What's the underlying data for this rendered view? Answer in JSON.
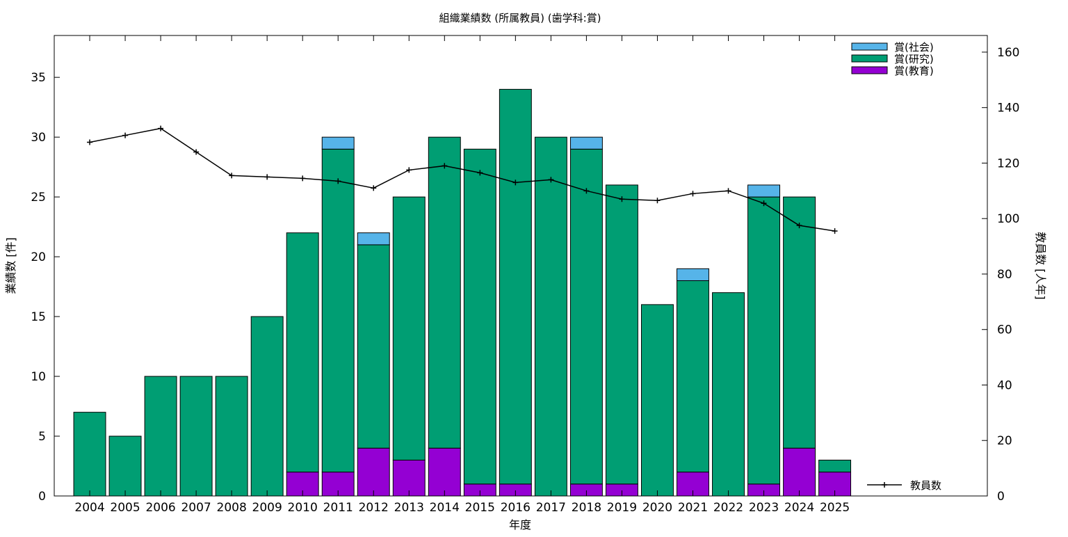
{
  "chart_data": {
    "type": "bar",
    "title": "組織業績数 (所属教員) (歯学科:賞)",
    "xlabel": "年度",
    "ylabel": "業績数 [件]",
    "y2label": "教員数 [人年]",
    "ylim": [
      0,
      38.5
    ],
    "y2lim": [
      0,
      166
    ],
    "yticks": [
      0,
      5,
      10,
      15,
      20,
      25,
      30,
      35
    ],
    "y2ticks": [
      0,
      20,
      40,
      60,
      80,
      100,
      120,
      140,
      160
    ],
    "categories": [
      "2004",
      "2005",
      "2006",
      "2007",
      "2008",
      "2009",
      "2010",
      "2011",
      "2012",
      "2013",
      "2014",
      "2015",
      "2016",
      "2017",
      "2018",
      "2019",
      "2020",
      "2021",
      "2022",
      "2023",
      "2024",
      "2025"
    ],
    "stacked": true,
    "legend_position": "top-right",
    "grid": false,
    "series": [
      {
        "name": "賞(教育)",
        "color": "#9400d3",
        "values": [
          0,
          0,
          0,
          0,
          0,
          0,
          2,
          2,
          4,
          3,
          4,
          1,
          1,
          0,
          1,
          1,
          0,
          2,
          0,
          1,
          4,
          2
        ]
      },
      {
        "name": "賞(研究)",
        "color": "#009e73",
        "values": [
          7,
          5,
          10,
          10,
          10,
          15,
          20,
          27,
          17,
          22,
          26,
          28,
          33,
          30,
          28,
          25,
          16,
          16,
          17,
          24,
          21,
          1
        ]
      },
      {
        "name": "賞(社会)",
        "color": "#56b4e9",
        "values": [
          0,
          0,
          0,
          0,
          0,
          0,
          0,
          1,
          1,
          0,
          0,
          0,
          0,
          0,
          1,
          0,
          0,
          1,
          0,
          1,
          0,
          0
        ]
      }
    ],
    "line_series": {
      "name": "教員数",
      "color": "#000000",
      "axis": "right",
      "values": [
        127.5,
        130,
        132.5,
        124,
        115.5,
        115,
        114.5,
        113.5,
        111,
        117.5,
        119,
        116.5,
        113,
        114,
        110,
        107,
        106.5,
        109,
        110,
        105.5,
        97.5,
        95.5
      ]
    },
    "legend": {
      "bars": [
        "賞(社会)",
        "賞(研究)",
        "賞(教育)"
      ],
      "line": "教員数"
    }
  }
}
